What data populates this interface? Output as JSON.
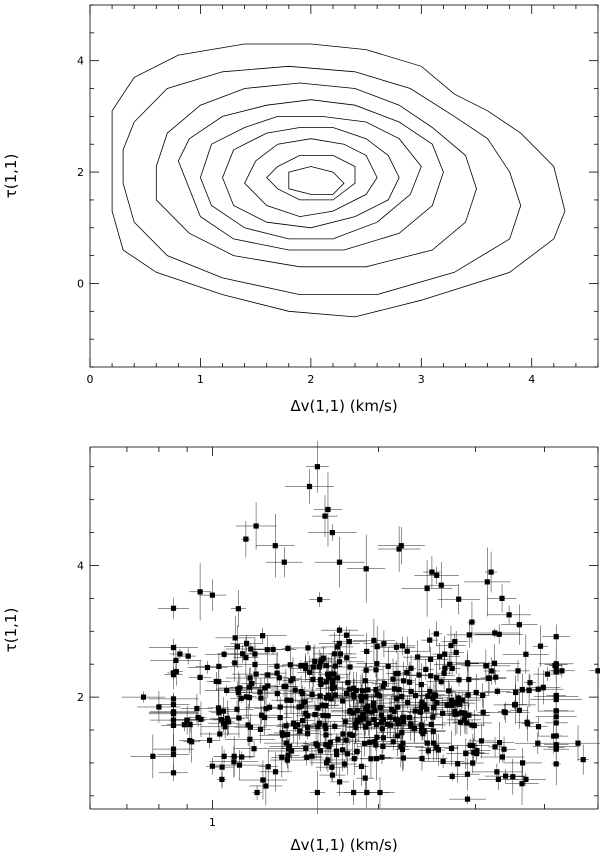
{
  "chart_data": [
    {
      "type": "contour",
      "xlabel": "Δv(1,1) (km/s)",
      "ylabel": "τ(1,1)",
      "xlim": [
        0,
        4.6
      ],
      "ylim": [
        -1.5,
        5.0
      ],
      "xticks": [
        "0",
        "1",
        "2",
        "3",
        "4"
      ],
      "yticks": [
        "0",
        "2",
        "4"
      ],
      "contours": [
        [
          [
            0.2,
            3.1
          ],
          [
            0.4,
            3.7
          ],
          [
            0.8,
            4.1
          ],
          [
            1.4,
            4.3
          ],
          [
            2.0,
            4.3
          ],
          [
            2.5,
            4.2
          ],
          [
            3.0,
            3.9
          ],
          [
            3.3,
            3.4
          ],
          [
            3.6,
            3.1
          ],
          [
            3.9,
            2.7
          ],
          [
            4.2,
            2.1
          ],
          [
            4.3,
            1.3
          ],
          [
            4.2,
            0.8
          ],
          [
            3.8,
            0.2
          ],
          [
            3.0,
            -0.3
          ],
          [
            2.4,
            -0.6
          ],
          [
            1.8,
            -0.5
          ],
          [
            1.2,
            -0.2
          ],
          [
            0.6,
            0.2
          ],
          [
            0.3,
            0.6
          ],
          [
            0.2,
            1.3
          ],
          [
            0.2,
            2.3
          ]
        ],
        [
          [
            0.4,
            2.9
          ],
          [
            0.7,
            3.5
          ],
          [
            1.2,
            3.8
          ],
          [
            1.8,
            3.9
          ],
          [
            2.4,
            3.8
          ],
          [
            2.9,
            3.5
          ],
          [
            3.3,
            3.0
          ],
          [
            3.6,
            2.6
          ],
          [
            3.8,
            2.0
          ],
          [
            3.9,
            1.4
          ],
          [
            3.8,
            0.8
          ],
          [
            3.3,
            0.2
          ],
          [
            2.6,
            -0.2
          ],
          [
            1.9,
            -0.2
          ],
          [
            1.2,
            0.1
          ],
          [
            0.7,
            0.5
          ],
          [
            0.4,
            1.1
          ],
          [
            0.3,
            1.8
          ],
          [
            0.3,
            2.4
          ]
        ],
        [
          [
            0.7,
            2.7
          ],
          [
            1.0,
            3.2
          ],
          [
            1.4,
            3.5
          ],
          [
            1.9,
            3.6
          ],
          [
            2.4,
            3.5
          ],
          [
            2.8,
            3.2
          ],
          [
            3.1,
            2.8
          ],
          [
            3.4,
            2.3
          ],
          [
            3.5,
            1.7
          ],
          [
            3.4,
            1.1
          ],
          [
            3.1,
            0.6
          ],
          [
            2.5,
            0.3
          ],
          [
            1.9,
            0.3
          ],
          [
            1.3,
            0.5
          ],
          [
            0.9,
            0.9
          ],
          [
            0.6,
            1.5
          ],
          [
            0.6,
            2.1
          ]
        ],
        [
          [
            0.9,
            2.6
          ],
          [
            1.2,
            3.0
          ],
          [
            1.6,
            3.2
          ],
          [
            2.0,
            3.3
          ],
          [
            2.4,
            3.2
          ],
          [
            2.8,
            2.9
          ],
          [
            3.1,
            2.5
          ],
          [
            3.2,
            2.0
          ],
          [
            3.1,
            1.4
          ],
          [
            2.8,
            0.9
          ],
          [
            2.3,
            0.6
          ],
          [
            1.8,
            0.6
          ],
          [
            1.3,
            0.8
          ],
          [
            1.0,
            1.2
          ],
          [
            0.9,
            1.7
          ],
          [
            0.8,
            2.2
          ]
        ],
        [
          [
            1.1,
            2.5
          ],
          [
            1.4,
            2.8
          ],
          [
            1.7,
            3.0
          ],
          [
            2.1,
            3.0
          ],
          [
            2.5,
            2.9
          ],
          [
            2.8,
            2.6
          ],
          [
            3.0,
            2.1
          ],
          [
            2.9,
            1.6
          ],
          [
            2.6,
            1.1
          ],
          [
            2.2,
            0.8
          ],
          [
            1.8,
            0.8
          ],
          [
            1.4,
            1.0
          ],
          [
            1.1,
            1.4
          ],
          [
            1.0,
            1.9
          ]
        ],
        [
          [
            1.3,
            2.4
          ],
          [
            1.6,
            2.7
          ],
          [
            1.9,
            2.8
          ],
          [
            2.2,
            2.8
          ],
          [
            2.5,
            2.6
          ],
          [
            2.7,
            2.3
          ],
          [
            2.8,
            1.9
          ],
          [
            2.7,
            1.5
          ],
          [
            2.4,
            1.2
          ],
          [
            2.0,
            1.0
          ],
          [
            1.6,
            1.1
          ],
          [
            1.3,
            1.4
          ],
          [
            1.2,
            1.9
          ]
        ],
        [
          [
            1.5,
            2.2
          ],
          [
            1.7,
            2.5
          ],
          [
            2.0,
            2.6
          ],
          [
            2.3,
            2.5
          ],
          [
            2.5,
            2.3
          ],
          [
            2.6,
            1.9
          ],
          [
            2.5,
            1.6
          ],
          [
            2.2,
            1.3
          ],
          [
            1.9,
            1.2
          ],
          [
            1.6,
            1.4
          ],
          [
            1.4,
            1.8
          ]
        ],
        [
          [
            1.7,
            2.1
          ],
          [
            1.9,
            2.3
          ],
          [
            2.2,
            2.3
          ],
          [
            2.4,
            2.1
          ],
          [
            2.4,
            1.8
          ],
          [
            2.2,
            1.5
          ],
          [
            1.9,
            1.5
          ],
          [
            1.7,
            1.7
          ],
          [
            1.6,
            1.9
          ]
        ],
        [
          [
            1.8,
            2.0
          ],
          [
            2.0,
            2.1
          ],
          [
            2.2,
            2.0
          ],
          [
            2.3,
            1.8
          ],
          [
            2.2,
            1.6
          ],
          [
            2.0,
            1.6
          ],
          [
            1.8,
            1.7
          ]
        ]
      ]
    },
    {
      "type": "scatter",
      "xlabel": "Δv(1,1) (km/s)",
      "ylabel": "τ(1,1)",
      "xscale": "log",
      "xlim": [
        0.6,
        5.0
      ],
      "ylim": [
        0.3,
        5.8
      ],
      "xticks": [
        "1"
      ],
      "xtick_values": [
        1
      ],
      "yticks": [
        "2",
        "4"
      ],
      "point_count": 560,
      "points": {
        "seed": 1234567,
        "core": {
          "n": 470,
          "x_center": 1.85,
          "x_sigma_log": 0.18,
          "y_center": 1.85,
          "y_sigma": 0.55,
          "y_min": 0.55,
          "y_max": 3.8,
          "x_min": 0.85,
          "x_max": 4.2
        },
        "scattered": [
          [
            1.55,
            5.5
          ],
          [
            1.5,
            5.2
          ],
          [
            1.62,
            4.85
          ],
          [
            1.6,
            4.75
          ],
          [
            1.65,
            4.5
          ],
          [
            2.2,
            4.3
          ],
          [
            2.18,
            4.25
          ],
          [
            1.15,
            4.4
          ],
          [
            1.2,
            4.6
          ],
          [
            1.3,
            4.3
          ],
          [
            1.35,
            4.05
          ],
          [
            1.7,
            4.05
          ],
          [
            2.5,
            3.9
          ],
          [
            2.55,
            3.85
          ],
          [
            3.2,
            3.9
          ],
          [
            3.15,
            3.75
          ],
          [
            1.9,
            3.95
          ],
          [
            2.45,
            3.65
          ],
          [
            2.6,
            3.7
          ],
          [
            0.95,
            3.6
          ],
          [
            1.0,
            3.55
          ],
          [
            0.85,
            3.35
          ],
          [
            3.35,
            3.5
          ],
          [
            3.45,
            3.25
          ],
          [
            3.6,
            3.1
          ],
          [
            3.7,
            2.65
          ],
          [
            4.3,
            2.4
          ],
          [
            4.05,
            2.35
          ],
          [
            5.0,
            2.4
          ],
          [
            4.6,
            1.3
          ],
          [
            4.7,
            1.05
          ],
          [
            4.2,
            1.25
          ],
          [
            3.9,
            1.55
          ],
          [
            3.6,
            1.8
          ],
          [
            3.75,
            2.1
          ],
          [
            0.75,
            2.0
          ],
          [
            0.8,
            1.85
          ],
          [
            0.9,
            1.65
          ],
          [
            0.95,
            2.3
          ],
          [
            0.85,
            0.85
          ],
          [
            0.78,
            1.1
          ],
          [
            3.3,
            0.75
          ],
          [
            3.4,
            0.8
          ],
          [
            3.7,
            0.75
          ],
          [
            3.65,
            1.0
          ],
          [
            2.9,
            0.45
          ],
          [
            1.25,
            0.65
          ],
          [
            1.55,
            0.55
          ],
          [
            1.1,
            2.9
          ],
          [
            1.15,
            2.6
          ],
          [
            0.98,
            2.45
          ],
          [
            1.05,
            2.65
          ],
          [
            1.0,
            0.95
          ],
          [
            1.05,
            1.1
          ]
        ]
      },
      "marker": "filled-square"
    }
  ]
}
